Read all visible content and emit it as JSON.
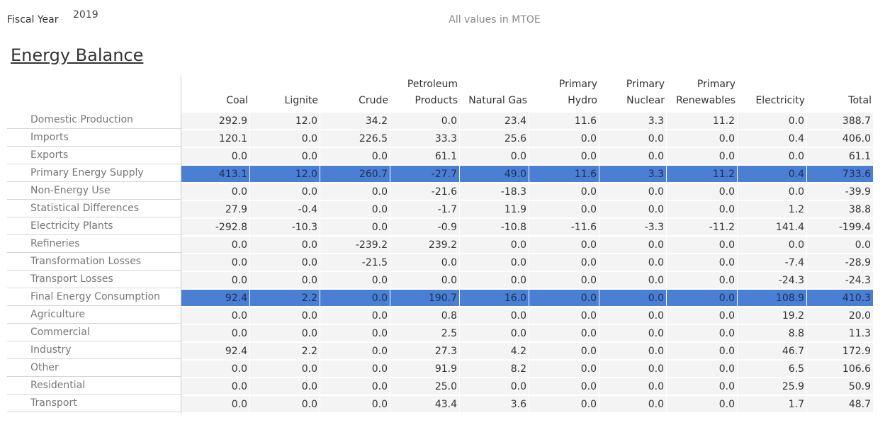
{
  "header": {
    "fiscal_year_label": "Fiscal Year",
    "fiscal_year": "2019",
    "note": "All values in MTOE",
    "title": "Energy Balance"
  },
  "table": {
    "columns": [
      [
        "Coal"
      ],
      [
        "Lignite"
      ],
      [
        "Crude"
      ],
      [
        "Petroleum",
        "Products"
      ],
      [
        "Natural Gas"
      ],
      [
        "Primary",
        "Hydro"
      ],
      [
        "Primary",
        "Nuclear"
      ],
      [
        "Primary",
        "Renewables"
      ],
      [
        "Electricity"
      ],
      [
        "Total"
      ]
    ],
    "rows": [
      {
        "label": "Domestic Production",
        "highlight": false,
        "cells": [
          "292.9",
          "12.0",
          "34.2",
          "0.0",
          "23.4",
          "11.6",
          "3.3",
          "11.2",
          "0.0",
          "388.7"
        ]
      },
      {
        "label": "Imports",
        "highlight": false,
        "cells": [
          "120.1",
          "0.0",
          "226.5",
          "33.3",
          "25.6",
          "0.0",
          "0.0",
          "0.0",
          "0.4",
          "406.0"
        ]
      },
      {
        "label": "Exports",
        "highlight": false,
        "cells": [
          "0.0",
          "0.0",
          "0.0",
          "61.1",
          "0.0",
          "0.0",
          "0.0",
          "0.0",
          "0.0",
          "61.1"
        ]
      },
      {
        "label": "Primary Energy Supply",
        "highlight": true,
        "cells": [
          "413.1",
          "12.0",
          "260.7",
          "-27.7",
          "49.0",
          "11.6",
          "3.3",
          "11.2",
          "0.4",
          "733.6"
        ]
      },
      {
        "label": "Non-Energy Use",
        "highlight": false,
        "cells": [
          "0.0",
          "0.0",
          "0.0",
          "-21.6",
          "-18.3",
          "0.0",
          "0.0",
          "0.0",
          "0.0",
          "-39.9"
        ]
      },
      {
        "label": "Statistical Differences",
        "highlight": false,
        "cells": [
          "27.9",
          "-0.4",
          "0.0",
          "-1.7",
          "11.9",
          "0.0",
          "0.0",
          "0.0",
          "1.2",
          "38.8"
        ]
      },
      {
        "label": "Electricity Plants",
        "highlight": false,
        "cells": [
          "-292.8",
          "-10.3",
          "0.0",
          "-0.9",
          "-10.8",
          "-11.6",
          "-3.3",
          "-11.2",
          "141.4",
          "-199.4"
        ]
      },
      {
        "label": "Refineries",
        "highlight": false,
        "cells": [
          "0.0",
          "0.0",
          "-239.2",
          "239.2",
          "0.0",
          "0.0",
          "0.0",
          "0.0",
          "0.0",
          "0.0"
        ]
      },
      {
        "label": "Transformation Losses",
        "highlight": false,
        "cells": [
          "0.0",
          "0.0",
          "-21.5",
          "0.0",
          "0.0",
          "0.0",
          "0.0",
          "0.0",
          "-7.4",
          "-28.9"
        ]
      },
      {
        "label": "Transport Losses",
        "highlight": false,
        "cells": [
          "0.0",
          "0.0",
          "0.0",
          "0.0",
          "0.0",
          "0.0",
          "0.0",
          "0.0",
          "-24.3",
          "-24.3"
        ]
      },
      {
        "label": "Final Energy Consumption",
        "highlight": true,
        "cells": [
          "92.4",
          "2.2",
          "0.0",
          "190.7",
          "16.0",
          "0.0",
          "0.0",
          "0.0",
          "108.9",
          "410.3"
        ]
      },
      {
        "label": "Agriculture",
        "highlight": false,
        "cells": [
          "0.0",
          "0.0",
          "0.0",
          "0.8",
          "0.0",
          "0.0",
          "0.0",
          "0.0",
          "19.2",
          "20.0"
        ]
      },
      {
        "label": "Commercial",
        "highlight": false,
        "cells": [
          "0.0",
          "0.0",
          "0.0",
          "2.5",
          "0.0",
          "0.0",
          "0.0",
          "0.0",
          "8.8",
          "11.3"
        ]
      },
      {
        "label": "Industry",
        "highlight": false,
        "cells": [
          "92.4",
          "2.2",
          "0.0",
          "27.3",
          "4.2",
          "0.0",
          "0.0",
          "0.0",
          "46.7",
          "172.9"
        ]
      },
      {
        "label": "Other",
        "highlight": false,
        "cells": [
          "0.0",
          "0.0",
          "0.0",
          "91.9",
          "8.2",
          "0.0",
          "0.0",
          "0.0",
          "6.5",
          "106.6"
        ]
      },
      {
        "label": "Residential",
        "highlight": false,
        "cells": [
          "0.0",
          "0.0",
          "0.0",
          "25.0",
          "0.0",
          "0.0",
          "0.0",
          "0.0",
          "25.9",
          "50.9"
        ]
      },
      {
        "label": "Transport",
        "highlight": false,
        "cells": [
          "0.0",
          "0.0",
          "0.0",
          "43.4",
          "3.6",
          "0.0",
          "0.0",
          "0.0",
          "1.7",
          "48.7"
        ]
      }
    ]
  }
}
